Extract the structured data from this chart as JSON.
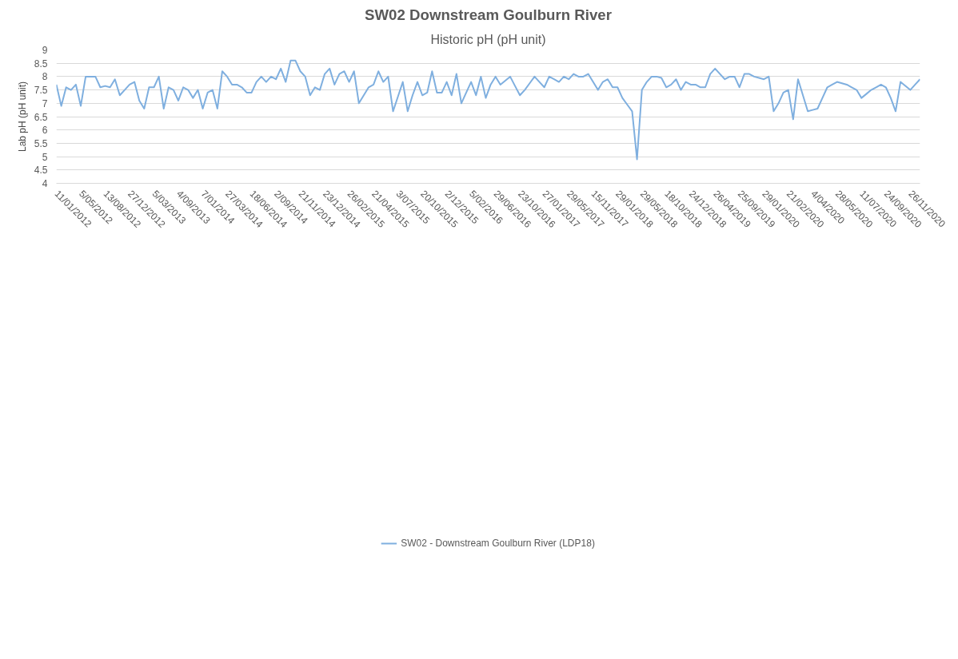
{
  "chart_data": {
    "type": "line",
    "title": "SW02 Downstream Goulburn River",
    "subtitle": "Historic pH (pH unit)",
    "ylabel": "Lab pH (pH unit)",
    "categories": [
      "11/01/2012",
      null,
      null,
      null,
      null,
      "5/05/2012",
      null,
      null,
      null,
      null,
      "13/08/2012",
      null,
      null,
      null,
      null,
      "27/12/2012",
      null,
      null,
      null,
      null,
      "5/03/2013",
      null,
      null,
      null,
      null,
      "4/09/2013",
      null,
      null,
      null,
      null,
      "7/01/2014",
      null,
      null,
      null,
      null,
      "27/03/2014",
      null,
      null,
      null,
      null,
      "18/06/2014",
      null,
      null,
      null,
      null,
      "2/09/2014",
      null,
      null,
      null,
      null,
      "21/11/2014",
      null,
      null,
      null,
      null,
      "23/12/2014",
      null,
      null,
      null,
      null,
      "26/02/2015",
      null,
      null,
      null,
      null,
      "21/04/2015",
      null,
      null,
      null,
      null,
      "3/07/2015",
      null,
      null,
      null,
      null,
      "20/10/2015",
      null,
      null,
      null,
      null,
      "2/12/2015",
      null,
      null,
      null,
      null,
      "5/02/2016",
      null,
      null,
      null,
      null,
      "29/06/2016",
      null,
      null,
      null,
      null,
      "23/10/2016",
      null,
      null,
      null,
      null,
      "27/01/2017",
      null,
      null,
      null,
      null,
      "29/05/2017",
      null,
      null,
      null,
      null,
      "15/11/2017",
      null,
      null,
      null,
      null,
      "29/01/2018",
      null,
      null,
      null,
      null,
      "29/05/2018",
      null,
      null,
      null,
      null,
      "18/10/2018",
      null,
      null,
      null,
      null,
      "24/12/2018",
      null,
      null,
      null,
      null,
      "26/04/2019",
      null,
      null,
      null,
      null,
      "25/09/2019",
      null,
      null,
      null,
      null,
      "29/01/2020",
      null,
      null,
      null,
      null,
      "21/02/2020",
      null,
      null,
      null,
      null,
      "4/04/2020",
      null,
      null,
      null,
      null,
      "28/05/2020",
      null,
      null,
      null,
      null,
      "11/07/2020",
      null,
      null,
      null,
      null,
      "24/09/2020",
      null,
      null,
      null,
      null,
      "26/11/2020",
      null,
      null
    ],
    "series": [
      {
        "name": "SW02 - Downstream Goulburn River (LDP18)",
        "color": "#7fafdf",
        "values": [
          7.7,
          6.9,
          7.6,
          7.5,
          7.7,
          6.9,
          8.0,
          8.0,
          8.0,
          7.6,
          7.65,
          7.6,
          7.9,
          7.3,
          7.5,
          7.7,
          7.8,
          7.1,
          6.8,
          7.6,
          7.6,
          8.0,
          6.8,
          7.6,
          7.5,
          7.1,
          7.6,
          7.5,
          7.2,
          7.5,
          6.8,
          7.4,
          7.5,
          6.8,
          8.2,
          8.0,
          7.7,
          7.7,
          7.6,
          7.4,
          7.4,
          7.8,
          8.0,
          7.8,
          8.0,
          7.9,
          8.3,
          7.8,
          8.6,
          8.6,
          8.2,
          8.0,
          7.3,
          7.6,
          7.5,
          8.1,
          8.3,
          7.7,
          8.1,
          8.2,
          7.8,
          8.2,
          7.0,
          7.3,
          7.6,
          7.7,
          8.2,
          7.8,
          8.0,
          6.7,
          7.25,
          7.8,
          6.7,
          7.3,
          7.8,
          7.3,
          7.4,
          8.2,
          7.4,
          7.4,
          7.8,
          7.3,
          8.1,
          7.0,
          7.4,
          7.8,
          7.3,
          8.0,
          7.2,
          7.7,
          8.0,
          7.7,
          7.85,
          8.0,
          7.65,
          7.3,
          7.5,
          7.75,
          8.0,
          7.8,
          7.6,
          8.0,
          7.9,
          7.8,
          8.0,
          7.9,
          8.1,
          8.0,
          8.0,
          8.1,
          7.8,
          7.5,
          7.8,
          7.9,
          7.6,
          7.6,
          7.2,
          6.95,
          6.7,
          4.9,
          7.5,
          7.8,
          8.0,
          8.0,
          7.95,
          7.6,
          7.7,
          7.9,
          7.5,
          7.8,
          7.7,
          7.7,
          7.6,
          7.6,
          8.1,
          8.3,
          8.1,
          7.9,
          8.0,
          8.0,
          7.6,
          8.1,
          8.1,
          8.0,
          7.95,
          7.9,
          8.0,
          6.7,
          7.0,
          7.4,
          7.5,
          6.4,
          7.9,
          7.3,
          6.7,
          6.75,
          6.8,
          7.2,
          7.6,
          7.7,
          7.8,
          7.75,
          7.7,
          7.6,
          7.5,
          7.2,
          7.35,
          7.5,
          7.6,
          7.7,
          7.6,
          7.2,
          6.7,
          7.8,
          7.65,
          7.5,
          7.7,
          7.9
        ]
      }
    ],
    "ylim": [
      4,
      9
    ],
    "yticks": [
      4,
      4.5,
      5,
      5.5,
      6,
      6.5,
      7,
      7.5,
      8,
      8.5,
      9
    ],
    "grid": "y",
    "legend": "bottom",
    "line_style": "solid"
  }
}
